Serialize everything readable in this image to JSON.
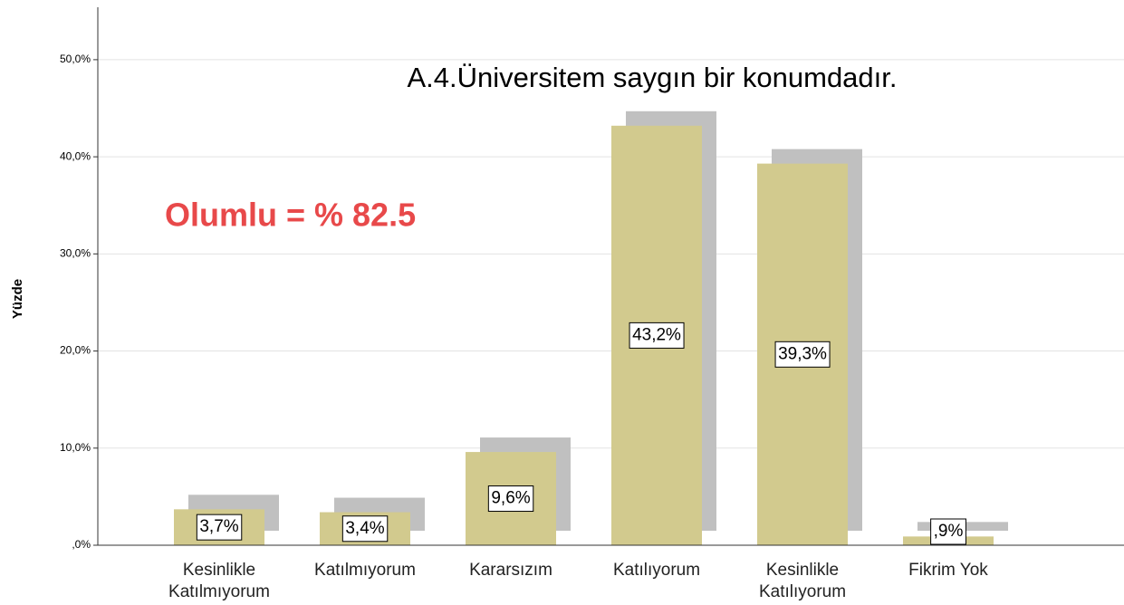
{
  "chart_data": {
    "type": "bar",
    "title": "A.4.Üniversitem saygın bir konumdadır.",
    "annotation": "Olumlu = % 82.5",
    "y_label": "Yüzde",
    "categories": [
      "Kesinlikle\nKatılmıyorum",
      "Katılmıyorum",
      "Kararsızım",
      "Katılıyorum",
      "Kesinlikle\nKatılıyorum",
      "Fikrim Yok"
    ],
    "values": [
      3.7,
      3.4,
      9.6,
      43.2,
      39.3,
      0.9
    ],
    "value_labels": [
      "3,7%",
      "3,4%",
      "9,6%",
      "43,2%",
      "39,3%",
      ",9%"
    ],
    "color": "#d2ca8e",
    "shadow_color": "#c0c0c0",
    "annotation_color": "#e8494a",
    "ylim": [
      0,
      55.4
    ],
    "yticks": [
      {
        "value": 0,
        "label": ",0%"
      },
      {
        "value": 10,
        "label": "10,0%"
      },
      {
        "value": 20,
        "label": "20,0%"
      },
      {
        "value": 30,
        "label": "30,0%"
      },
      {
        "value": 40,
        "label": "40,0%"
      },
      {
        "value": 50,
        "label": "50,0%"
      }
    ],
    "grid": true
  }
}
